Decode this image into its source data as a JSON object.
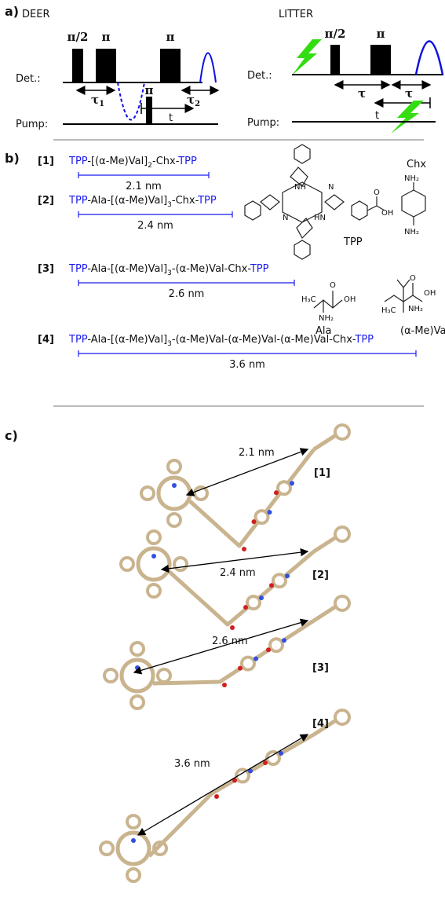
{
  "panel_a": {
    "label": "a)",
    "deer": {
      "title": "DEER",
      "pulses": [
        "π/2",
        "π",
        "π"
      ],
      "det": "Det.:",
      "tau1": "τ",
      "tau1_sub": "1",
      "tau2": "τ",
      "tau2_sub": "2",
      "pump_pulse": "π",
      "t": "t",
      "pump": "Pump:"
    },
    "litter": {
      "title": "LITTER",
      "pulses": [
        "π/2",
        "π"
      ],
      "det": "Det.:",
      "tau_a": "τ",
      "tau_b": "τ",
      "t": "t",
      "pump": "Pump:"
    }
  },
  "panel_b": {
    "label": "b)",
    "compounds": [
      {
        "id": "[1]",
        "formula": [
          {
            "text": "TPP",
            "blue": true
          },
          {
            "text": "-[(α-Me)Val]"
          },
          {
            "text": "2",
            "sub": true
          },
          {
            "text": "-Chx-"
          },
          {
            "text": "TPP",
            "blue": true
          }
        ],
        "distance": "2.1 nm"
      },
      {
        "id": "[2]",
        "formula": [
          {
            "text": "TPP",
            "blue": true
          },
          {
            "text": "-Ala-[(α-Me)Val]"
          },
          {
            "text": "3",
            "sub": true
          },
          {
            "text": "-Chx-"
          },
          {
            "text": "TPP",
            "blue": true
          }
        ],
        "distance": "2.4 nm"
      },
      {
        "id": "[3]",
        "formula": [
          {
            "text": "TPP",
            "blue": true
          },
          {
            "text": "-Ala-[(α-Me)Val]"
          },
          {
            "text": "3",
            "sub": true
          },
          {
            "text": "-(α-Me)Val-Chx-"
          },
          {
            "text": "TPP",
            "blue": true
          }
        ],
        "distance": "2.6 nm"
      },
      {
        "id": "[4]",
        "formula": [
          {
            "text": "TPP",
            "blue": true
          },
          {
            "text": "-Ala-[(α-Me)Val]"
          },
          {
            "text": "3",
            "sub": true
          },
          {
            "text": "-(α-Me)Val-(α-Me)Val-(α-Me)Val-Chx-"
          },
          {
            "text": "TPP",
            "blue": true
          }
        ],
        "distance": "3.6 nm"
      }
    ],
    "structures": [
      {
        "name": "TPP",
        "atoms": [
          "NH",
          "N",
          "N",
          "HN",
          "O",
          "OH"
        ]
      },
      {
        "name": "Chx",
        "atoms": [
          "NH₂",
          "NH₂"
        ]
      },
      {
        "name": "Ala",
        "atoms": [
          "H₃C",
          "O",
          "OH",
          "NH₂"
        ]
      },
      {
        "name": "(α-Me)Val",
        "atoms": [
          "O",
          "OH",
          "H₃C",
          "NH₂"
        ]
      }
    ]
  },
  "panel_c": {
    "label": "c)",
    "models": [
      {
        "id": "[1]",
        "distance": "2.1 nm"
      },
      {
        "id": "[2]",
        "distance": "2.4 nm"
      },
      {
        "id": "[3]",
        "distance": "2.6 nm"
      },
      {
        "id": "[4]",
        "distance": "3.6 nm"
      }
    ]
  }
}
